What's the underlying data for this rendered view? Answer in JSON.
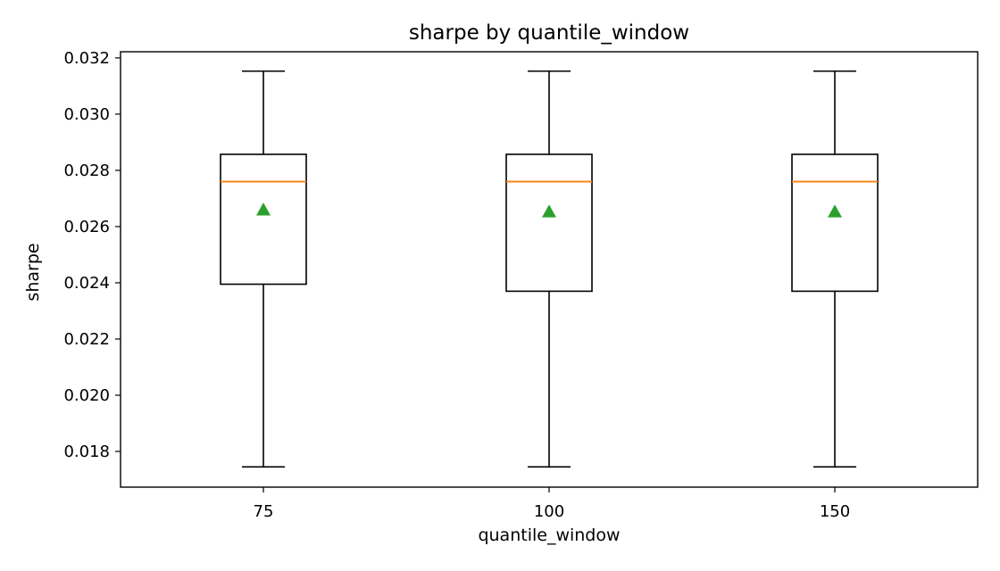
{
  "chart_data": {
    "type": "box",
    "title": "sharpe by quantile_window",
    "xlabel": "quantile_window",
    "ylabel": "sharpe",
    "ylim": [
      0.01673,
      0.03222
    ],
    "yticks": [
      "0.018",
      "0.020",
      "0.022",
      "0.024",
      "0.026",
      "0.028",
      "0.030",
      "0.032"
    ],
    "grid": false,
    "categories": [
      "75",
      "100",
      "150"
    ],
    "boxes": [
      {
        "category": "75",
        "whisker_low": 0.01745,
        "q1": 0.02395,
        "median": 0.0276,
        "q3": 0.02857,
        "whisker_high": 0.03153,
        "mean": 0.0266
      },
      {
        "category": "100",
        "whisker_low": 0.01745,
        "q1": 0.0237,
        "median": 0.0276,
        "q3": 0.02857,
        "whisker_high": 0.03153,
        "mean": 0.02653
      },
      {
        "category": "150",
        "whisker_low": 0.01745,
        "q1": 0.0237,
        "median": 0.0276,
        "q3": 0.02857,
        "whisker_high": 0.03153,
        "mean": 0.02653
      }
    ],
    "colors": {
      "box": "#000000",
      "median": "#ff7f0e",
      "mean": "#2ca02c"
    }
  }
}
